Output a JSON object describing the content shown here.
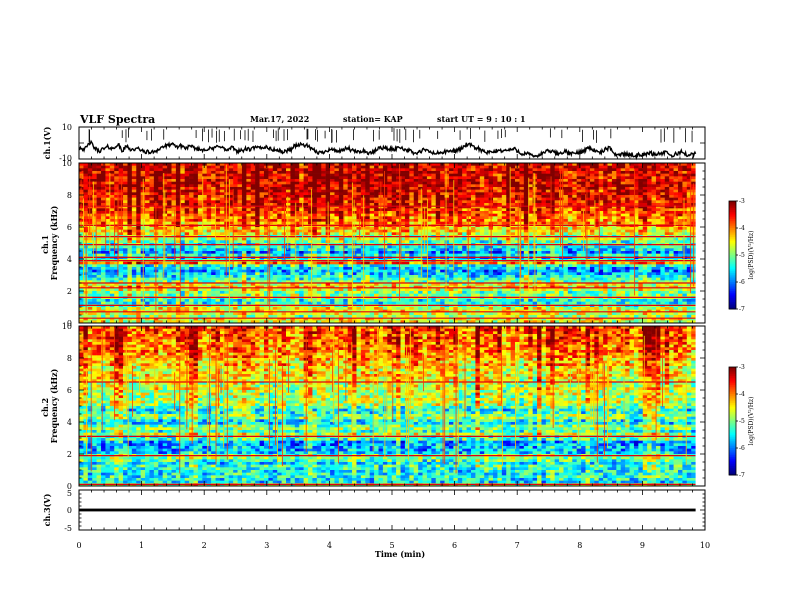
{
  "header": {
    "title": "VLF Spectra",
    "date": "Mar.17, 2022",
    "station": "station= KAP",
    "start": "start  UT  =  9  : 10 : 1"
  },
  "chart_data": [
    {
      "id": "ch1-waveform",
      "type": "line",
      "ylabel": "ch.1(V)",
      "ylim": [
        -10,
        10
      ],
      "y_ticks": [
        "10",
        "-10"
      ],
      "xlim": [
        0,
        10
      ],
      "color": "#000000",
      "data_end_min": 9.85,
      "y": [
        -2.6,
        -3.2,
        -4.1,
        -1.8,
        0.7,
        -2.3,
        -4.0,
        -5.2,
        -4.0,
        -3.5,
        -2.4,
        -3.0,
        -3.8,
        -1.2,
        -1.6,
        -5.3,
        -3.0,
        -2.1,
        -4.1,
        -4.0,
        -4.1,
        -3.2,
        -5.2,
        -5.4,
        -5.6,
        -6.0,
        -5.4,
        -4.6,
        -3.9,
        -2.4,
        -2.0,
        -1.9,
        -0.4,
        -1.6,
        -2.2,
        -2.1,
        -1.6,
        -3.4,
        -2.4,
        -2.5,
        -2.9,
        -3.5,
        -4.1,
        -4.2,
        -3.6,
        -4.1,
        -3.3,
        -3.8,
        -2.2,
        -1.5,
        -2.9,
        -4.3,
        -4.6,
        -2.9,
        -3.4,
        -5.0,
        -4.7,
        -5.0,
        -3.7,
        -4.0,
        -4.1,
        -2.9,
        -3.1,
        -3.0,
        -3.0,
        -2.2,
        -2.9,
        -4.1,
        -4.1,
        -4.6,
        -4.9,
        -5.7,
        -5.3,
        -4.3,
        -4.1,
        -1.8,
        -1.3,
        -1.2,
        -1.0,
        -1.5,
        -2.0,
        -4.0,
        -4.7,
        -5.7,
        -6.0,
        -6.0,
        -4.7,
        -4.2,
        -4.0,
        -4.5,
        -4.7,
        -5.3,
        -4.9,
        -3.4,
        -3.3,
        -5.0,
        -4.8,
        -5.8,
        -5.6,
        -4.4,
        -5.9,
        -6.1,
        -6.4,
        -5.3,
        -3.9,
        -2.7,
        -3.1,
        -3.3,
        -3.8,
        -3.9,
        -3.9,
        -3.1,
        -2.3,
        -3.7,
        -4.0,
        -4.8,
        -5.2,
        -6.7,
        -6.2,
        -5.6,
        -4.2,
        -4.6,
        -5.4,
        -5.9,
        -6.6,
        -6.4,
        -6.0,
        -5.8,
        -5.5,
        -5.2,
        -5.0,
        -4.9,
        -4.4,
        -3.9,
        -2.4,
        -1.0,
        -1.3,
        -1.6,
        -3.5,
        -2.8,
        -4.4,
        -5.0,
        -6.3,
        -5.8,
        -5.9,
        -5.3,
        -4.5,
        -4.8,
        -4.6,
        -4.7,
        -4.3,
        -4.0,
        -3.8,
        -4.9,
        -6.3,
        -6.9,
        -6.6,
        -7.0,
        -8.3,
        -8.0,
        -7.9,
        -7.3,
        -5.8,
        -5.3,
        -5.0,
        -5.4,
        -6.0,
        -6.9,
        -6.2,
        -5.3,
        -5.7,
        -6.6,
        -6.7,
        -6.2,
        -6.2,
        -5.6,
        -4.8,
        -3.5,
        -2.9,
        -3.9,
        -4.7,
        -6.1,
        -5.9,
        -4.6,
        -3.4,
        -3.4,
        -4.9,
        -7.0,
        -7.4,
        -7.0,
        -6.8,
        -7.2,
        -7.2,
        -7.0,
        -8.3,
        -7.2,
        -7.2,
        -7.4,
        -6.8,
        -6.0,
        -6.8,
        -7.0,
        -6.5,
        -6.6,
        -6.1,
        -6.2,
        -7.4,
        -8.1,
        -7.0,
        -6.5,
        -5.0,
        -6.8,
        -7.3,
        -7.3,
        -7.5,
        -6.4
      ]
    },
    {
      "id": "ch1-spectrogram",
      "type": "heatmap",
      "ylabel": "ch.1\nFrequency (kHz)",
      "ylim": [
        0,
        10
      ],
      "y_ticks": [
        "0",
        "2",
        "4",
        "6",
        "8",
        "10"
      ],
      "xlim": [
        0,
        10
      ],
      "colorbar": {
        "label": "log(PSD)(V²/Hz)",
        "range": [
          -7,
          -3
        ],
        "ticks": [
          "-3",
          "-4",
          "-5",
          "-6",
          "-7"
        ]
      },
      "seed": 1,
      "profile": [
        -4.6,
        -4.5,
        -4.9,
        -4.6,
        -4.5,
        -4.6,
        -5.2,
        -5.4,
        -5.4,
        -5.0,
        -5.0,
        -5.0,
        -4.6,
        -4.4,
        -4.6,
        -5.0,
        -5.3,
        -5.5,
        -5.7,
        -5.9,
        -5.8,
        -5.4,
        -4.0,
        -5.2,
        -5.7,
        -5.4,
        -6.0,
        -5.6,
        -5.5,
        -5.3,
        -5.2,
        -4.8,
        -4.9,
        -4.5,
        -4.3,
        -4.3,
        -4.1,
        -4.0,
        -3.9,
        -3.9,
        -3.8,
        -3.7,
        -3.7,
        -3.6,
        -3.5,
        -3.5,
        -3.5,
        -3.4,
        -3.4,
        -3.4,
        -3.3,
        -3.3,
        -3.3,
        -3.3,
        -3.3,
        -3.3,
        -3.3,
        -3.3,
        -3.3,
        -3.3
      ],
      "red_lines_khz": [
        0.3,
        0.7,
        1.1,
        1.6,
        2.2,
        2.5,
        3.9,
        4.1,
        4.9,
        5.4,
        6.1,
        7.3
      ],
      "gap_rows": [
        0
      ]
    },
    {
      "id": "ch2-spectrogram",
      "type": "heatmap",
      "ylabel": "ch.2\nFrequency (kHz)",
      "ylim": [
        0,
        10
      ],
      "y_ticks": [
        "0",
        "2",
        "4",
        "6",
        "8",
        "10"
      ],
      "xlim": [
        0,
        10
      ],
      "colorbar": {
        "label": "log(PSD)(V²/Hz)",
        "range": [
          -7,
          -3
        ],
        "ticks": [
          "-3",
          "-4",
          "-5",
          "-6",
          "-7"
        ]
      },
      "seed": 7,
      "profile": [
        -4.7,
        -5.6,
        -5.5,
        -5.4,
        -5.5,
        -5.5,
        -5.4,
        -5.3,
        -5.6,
        -5.3,
        -5.0,
        -5.1,
        -5.7,
        -5.8,
        -5.8,
        -5.9,
        -5.9,
        -5.2,
        -5.3,
        -4.8,
        -5.3,
        -5.0,
        -5.1,
        -5.6,
        -5.5,
        -5.0,
        -5.0,
        -5.4,
        -5.5,
        -5.2,
        -4.9,
        -4.8,
        -4.8,
        -4.9,
        -4.8,
        -4.8,
        -4.6,
        -4.8,
        -4.7,
        -4.6,
        -4.5,
        -4.4,
        -4.5,
        -4.5,
        -4.5,
        -4.2,
        -4.4,
        -4.2,
        -4.1,
        -4.1,
        -4.0,
        -4.0,
        -4.0,
        -3.9,
        -3.9,
        -3.8,
        -3.9,
        -3.8,
        -3.8,
        -3.8
      ],
      "red_lines_khz": [
        0.1,
        1.9,
        3.1,
        6.5
      ],
      "gap_rows": [
        0
      ]
    },
    {
      "id": "ch3-waveform",
      "type": "line",
      "ylabel": "ch.3(V)",
      "ylim": [
        -5,
        5
      ],
      "y_ticks": [
        "5",
        "0",
        "-5"
      ],
      "xlim": [
        0,
        10
      ],
      "color": "#000000",
      "data_end_min": 9.85,
      "level": 0,
      "band": 0.7
    }
  ],
  "x_axis": {
    "label": "Time  (min)",
    "ticks": [
      "0",
      "1",
      "2",
      "3",
      "4",
      "5",
      "6",
      "7",
      "8",
      "9",
      "10"
    ],
    "range": [
      0,
      10
    ]
  }
}
